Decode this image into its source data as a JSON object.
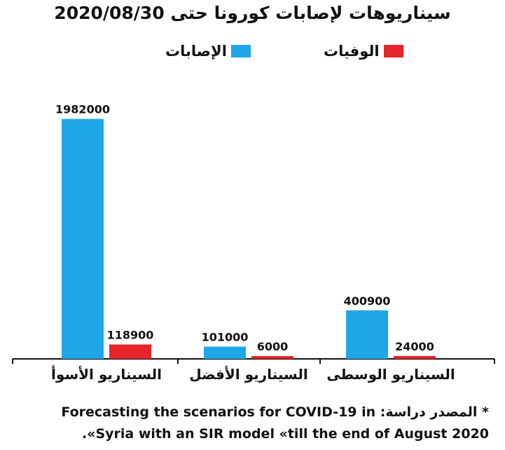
{
  "chart_data": {
    "type": "bar",
    "title": "سيناريوهات لإصابات كورونا حتى 2020/08/30",
    "categories": [
      "السيناريو الأسوأ",
      "السيناريو الأفضل",
      "السيناريو الوسطى"
    ],
    "series": [
      {
        "name": "الإصابات",
        "color": "#1ea7e7",
        "values": [
          1982000,
          101000,
          400900
        ]
      },
      {
        "name": "الوفيات",
        "color": "#e5242b",
        "values": [
          118900,
          6000,
          24000
        ]
      }
    ],
    "ylim": [
      0,
      2200000
    ],
    "grid": false,
    "legend": "top"
  },
  "footnote": {
    "line1": "* المصدر دراسة: Forecasting the scenarios for COVID-19 in",
    "line2": "Syria with an SIR model «till the end of August 2020».",
    "line2_display": "Syria with an SIR model «till the end of August 2020»."
  }
}
